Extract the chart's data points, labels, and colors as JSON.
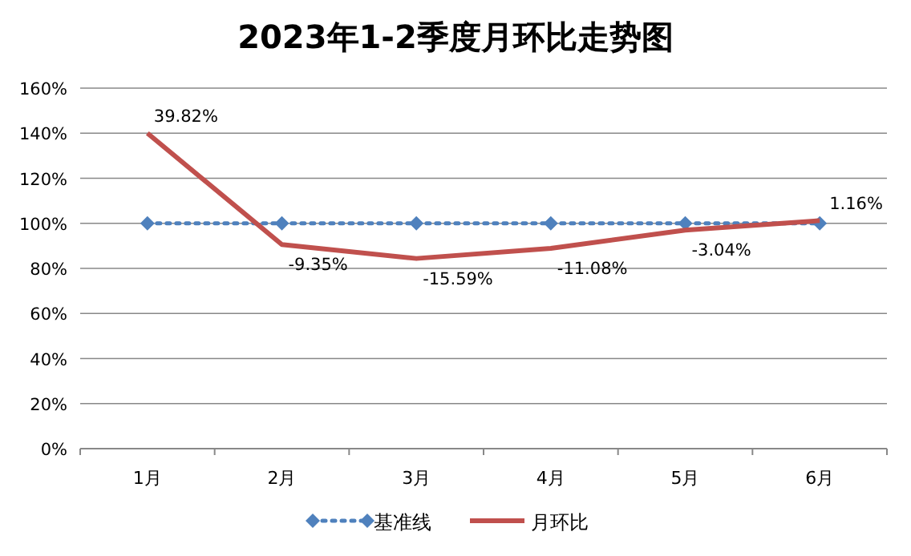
{
  "chart_data": {
    "type": "line",
    "title": "2023年1-2季度月环比走势图",
    "categories": [
      "1月",
      "2月",
      "3月",
      "4月",
      "5月",
      "6月"
    ],
    "series": [
      {
        "name": "基准线",
        "color": "#4f81bd",
        "marker": "diamond",
        "line_style": "dotted",
        "values": [
          100,
          100,
          100,
          100,
          100,
          100
        ]
      },
      {
        "name": "月环比",
        "color": "#c0504d",
        "marker": "none",
        "line_style": "solid",
        "values": [
          140,
          90.6,
          84.4,
          88.9,
          97,
          101.2
        ]
      }
    ],
    "annotations": [
      {
        "text": "39.82%",
        "x": "1月",
        "y": 140
      },
      {
        "text": "-9.35%",
        "x": "2月",
        "y": 90.6
      },
      {
        "text": "-15.59%",
        "x": "3月",
        "y": 84.4
      },
      {
        "text": "-11.08%",
        "x": "4月",
        "y": 88.9
      },
      {
        "text": "-3.04%",
        "x": "5月",
        "y": 97
      },
      {
        "text": "1.16%",
        "x": "6月",
        "y": 101.2
      }
    ],
    "ylim": [
      0,
      160
    ],
    "yticks": [
      {
        "value": 0,
        "label": "0%"
      },
      {
        "value": 20,
        "label": "20%"
      },
      {
        "value": 40,
        "label": "40%"
      },
      {
        "value": 60,
        "label": "60%"
      },
      {
        "value": 80,
        "label": "80%"
      },
      {
        "value": 100,
        "label": "100%"
      },
      {
        "value": 120,
        "label": "120%"
      },
      {
        "value": 140,
        "label": "140%"
      },
      {
        "value": 160,
        "label": "160%"
      }
    ],
    "grid": "y",
    "legend": "bottom"
  }
}
